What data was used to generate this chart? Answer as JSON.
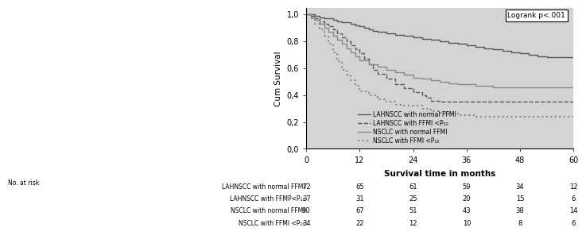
{
  "xlabel": "Survival time in months",
  "ylabel": "Cum Survival",
  "xlim": [
    0,
    60
  ],
  "ylim": [
    0.0,
    1.0
  ],
  "xticks": [
    0,
    12,
    24,
    36,
    48,
    60
  ],
  "yticks": [
    0.0,
    0.2,
    0.4,
    0.6,
    0.8,
    1.0
  ],
  "logrank_text": "Logrank p<.001",
  "background_color": "#d4d4d4",
  "curves": [
    {
      "label": "LAHNSCC with normal FFMI",
      "color": "#555555",
      "linestyle": "solid",
      "linewidth": 1.0,
      "times": [
        0,
        2,
        3,
        4,
        5,
        6,
        7,
        8,
        9,
        10,
        11,
        12,
        13,
        14,
        15,
        16,
        18,
        20,
        22,
        24,
        26,
        28,
        30,
        32,
        34,
        36,
        38,
        40,
        42,
        44,
        46,
        48,
        50,
        52,
        54,
        56,
        58,
        60
      ],
      "survival": [
        1.0,
        0.99,
        0.98,
        0.97,
        0.97,
        0.96,
        0.95,
        0.94,
        0.94,
        0.93,
        0.92,
        0.91,
        0.9,
        0.89,
        0.88,
        0.87,
        0.86,
        0.85,
        0.84,
        0.83,
        0.82,
        0.81,
        0.8,
        0.79,
        0.78,
        0.77,
        0.76,
        0.75,
        0.74,
        0.73,
        0.72,
        0.71,
        0.7,
        0.69,
        0.68,
        0.68,
        0.68,
        0.68
      ]
    },
    {
      "label": "LAHNSCC with FFMI <P₁₀",
      "color": "#555555",
      "linestyle": "dashed",
      "linewidth": 1.0,
      "times": [
        0,
        1,
        2,
        3,
        4,
        5,
        6,
        7,
        8,
        9,
        10,
        11,
        12,
        13,
        14,
        15,
        16,
        18,
        20,
        22,
        24,
        26,
        27,
        28,
        30,
        60
      ],
      "survival": [
        1.0,
        0.99,
        0.97,
        0.95,
        0.93,
        0.91,
        0.89,
        0.86,
        0.83,
        0.8,
        0.77,
        0.74,
        0.71,
        0.67,
        0.63,
        0.59,
        0.56,
        0.52,
        0.48,
        0.45,
        0.42,
        0.4,
        0.38,
        0.36,
        0.35,
        0.35
      ]
    },
    {
      "label": "NSCLC with normal FFMI",
      "color": "#888888",
      "linestyle": "solid",
      "linewidth": 1.0,
      "times": [
        0,
        1,
        2,
        3,
        4,
        5,
        6,
        7,
        8,
        9,
        10,
        11,
        12,
        14,
        16,
        18,
        20,
        22,
        24,
        26,
        28,
        30,
        32,
        34,
        36,
        38,
        40,
        42,
        44,
        46,
        48,
        50,
        52,
        54,
        56,
        58,
        60
      ],
      "survival": [
        1.0,
        0.98,
        0.96,
        0.93,
        0.9,
        0.87,
        0.84,
        0.81,
        0.78,
        0.75,
        0.72,
        0.69,
        0.66,
        0.63,
        0.61,
        0.59,
        0.57,
        0.55,
        0.53,
        0.52,
        0.51,
        0.5,
        0.49,
        0.48,
        0.48,
        0.47,
        0.47,
        0.46,
        0.46,
        0.46,
        0.46,
        0.46,
        0.46,
        0.46,
        0.46,
        0.46,
        0.46
      ]
    },
    {
      "label": "NSCLC with FFMI <P₁₀",
      "color": "#888888",
      "linestyle": "dotted",
      "linewidth": 1.5,
      "times": [
        0,
        1,
        2,
        3,
        4,
        5,
        6,
        7,
        8,
        9,
        10,
        11,
        12,
        14,
        16,
        18,
        20,
        22,
        24,
        26,
        28,
        30,
        32,
        34,
        36,
        38,
        40,
        42,
        60
      ],
      "survival": [
        1.0,
        0.97,
        0.93,
        0.89,
        0.84,
        0.78,
        0.72,
        0.65,
        0.59,
        0.55,
        0.51,
        0.47,
        0.43,
        0.4,
        0.37,
        0.35,
        0.33,
        0.32,
        0.32,
        0.3,
        0.28,
        0.27,
        0.26,
        0.25,
        0.25,
        0.24,
        0.24,
        0.24,
        0.24
      ]
    }
  ],
  "at_risk_labels": [
    "LAHNSCC with normal FFMI",
    "LAHNSCC with FFMP<P₁₀",
    "NSCLC with normal FFMI",
    "NSCLC with FFMI <P₁₀"
  ],
  "at_risk_values": [
    [
      72,
      65,
      61,
      59,
      34,
      12
    ],
    [
      37,
      31,
      25,
      20,
      15,
      6
    ],
    [
      90,
      67,
      51,
      43,
      38,
      14
    ],
    [
      34,
      22,
      12,
      10,
      8,
      6
    ]
  ]
}
